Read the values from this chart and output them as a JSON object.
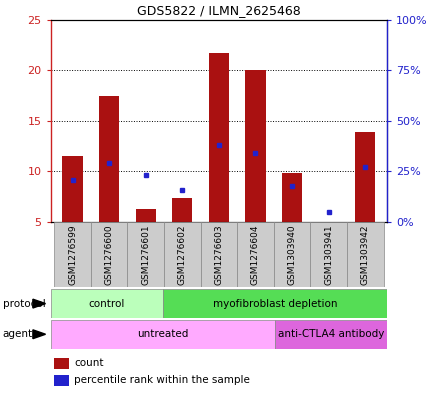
{
  "title": "GDS5822 / ILMN_2625468",
  "samples": [
    "GSM1276599",
    "GSM1276600",
    "GSM1276601",
    "GSM1276602",
    "GSM1276603",
    "GSM1276604",
    "GSM1303940",
    "GSM1303941",
    "GSM1303942"
  ],
  "count_values": [
    11.5,
    17.5,
    6.3,
    7.4,
    21.7,
    20.0,
    9.8,
    5.0,
    13.9
  ],
  "percentile_values": [
    21,
    29,
    23,
    16,
    38,
    34,
    18,
    5,
    27
  ],
  "count_base": 5.0,
  "ylim_left": [
    5,
    25
  ],
  "ylim_right": [
    0,
    100
  ],
  "yticks_left": [
    5,
    10,
    15,
    20,
    25
  ],
  "yticks_right": [
    0,
    25,
    50,
    75,
    100
  ],
  "ytick_labels_left": [
    "5",
    "10",
    "15",
    "20",
    "25"
  ],
  "ytick_labels_right": [
    "0%",
    "25%",
    "50%",
    "75%",
    "100%"
  ],
  "bar_color": "#aa1111",
  "dot_color": "#2222cc",
  "protocol_groups": [
    {
      "label": "control",
      "start": 0,
      "end": 3,
      "color": "#bbffbb"
    },
    {
      "label": "myofibroblast depletion",
      "start": 3,
      "end": 9,
      "color": "#55dd55"
    }
  ],
  "agent_groups": [
    {
      "label": "untreated",
      "start": 0,
      "end": 6,
      "color": "#ffaaff"
    },
    {
      "label": "anti-CTLA4 antibody",
      "start": 6,
      "end": 9,
      "color": "#dd66dd"
    }
  ],
  "protocol_label": "protocol",
  "agent_label": "agent",
  "legend_count_label": "count",
  "legend_percentile_label": "percentile rank within the sample",
  "sample_box_color": "#cccccc",
  "sample_box_edge": "#888888"
}
